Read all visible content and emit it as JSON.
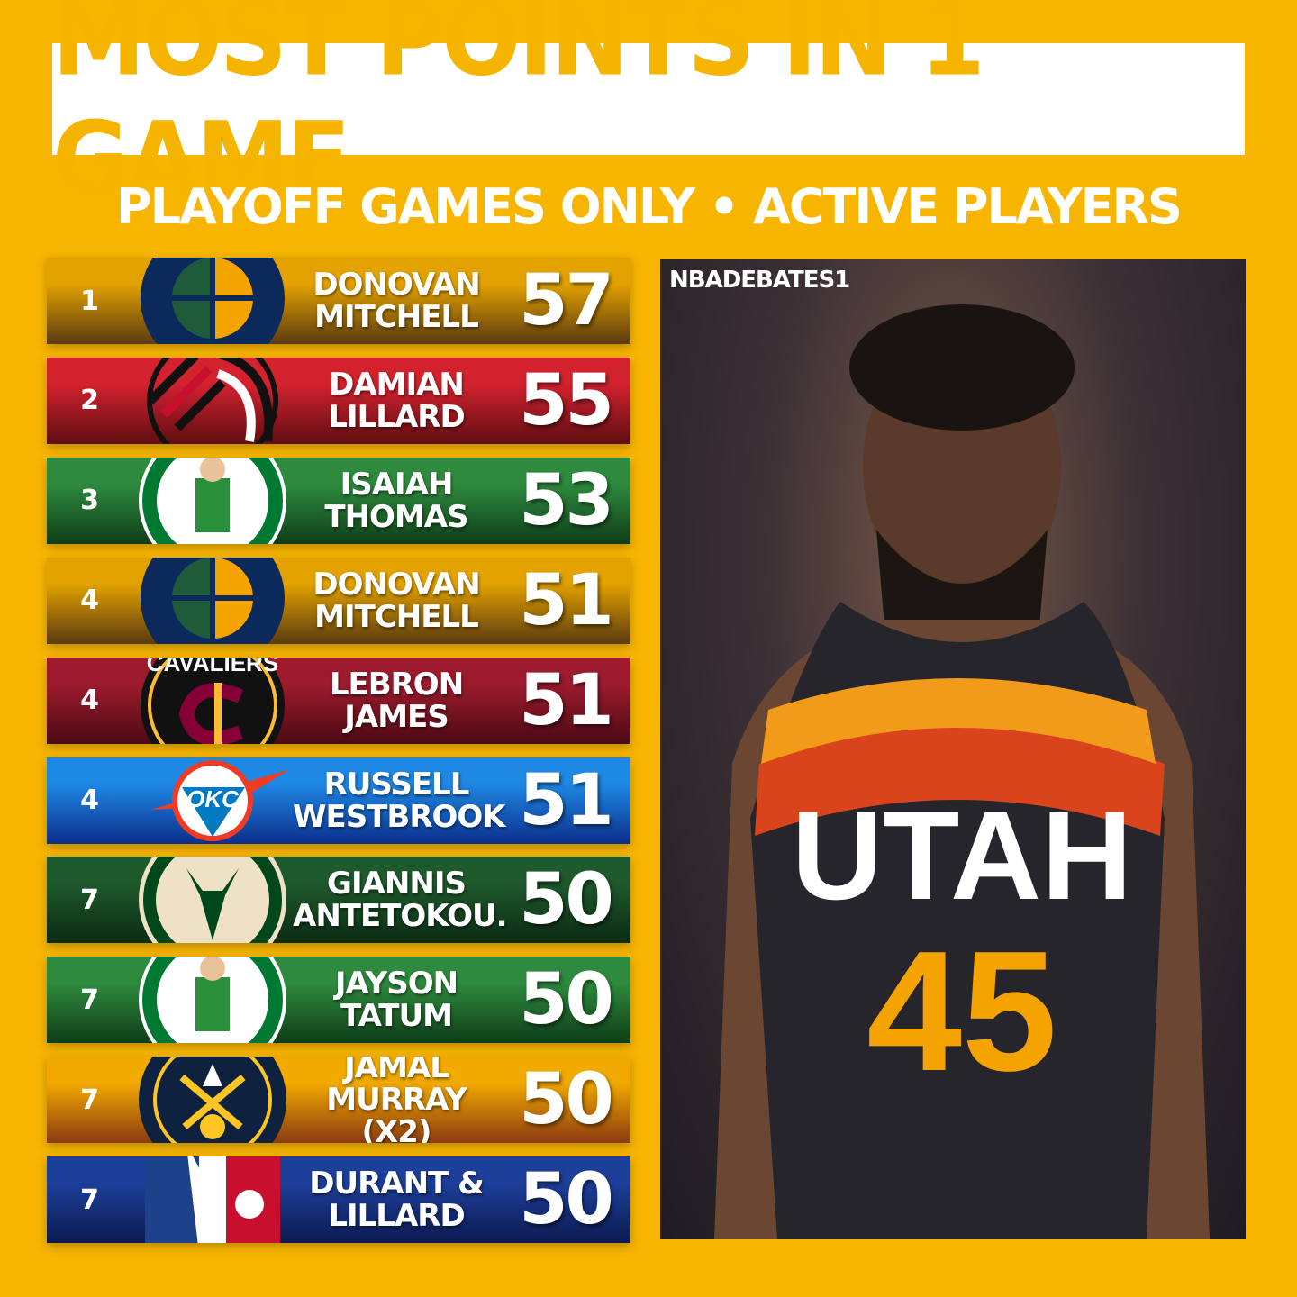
{
  "header": {
    "title": "MOST POINTS IN 1 GAME",
    "subtitle": "PLAYOFF GAMES ONLY • ACTIVE PLAYERS"
  },
  "rows": [
    {
      "rank": "1",
      "line1": "DONOVAN",
      "line2": "MITCHELL",
      "points": "57",
      "team": "jazz",
      "colors": [
        "#E3A200",
        "#5a3a10"
      ]
    },
    {
      "rank": "2",
      "line1": "DAMIAN",
      "line2": "LILLARD",
      "points": "55",
      "team": "blazers",
      "colors": [
        "#D3222E",
        "#5e0d12"
      ]
    },
    {
      "rank": "3",
      "line1": "ISAIAH",
      "line2": "THOMAS",
      "points": "53",
      "team": "celtics",
      "colors": [
        "#2E8B3E",
        "#0f3d18"
      ]
    },
    {
      "rank": "4",
      "line1": "DONOVAN",
      "line2": "MITCHELL",
      "points": "51",
      "team": "jazz",
      "colors": [
        "#E3A200",
        "#5a3a10"
      ]
    },
    {
      "rank": "4",
      "line1": "LEBRON",
      "line2": "JAMES",
      "points": "51",
      "team": "cavaliers",
      "colors": [
        "#9E1B2E",
        "#4a0a12"
      ]
    },
    {
      "rank": "4",
      "line1": "RUSSELL",
      "line2": "WESTBROOK",
      "points": "51",
      "team": "thunder",
      "colors": [
        "#1E88E5",
        "#0b2f8a"
      ]
    },
    {
      "rank": "7",
      "line1": "GIANNIS",
      "line2": "ANTETOKOU.",
      "points": "50",
      "team": "bucks",
      "colors": [
        "#1f5a2c",
        "#0b2a13"
      ]
    },
    {
      "rank": "7",
      "line1": "JAYSON",
      "line2": "TATUM",
      "points": "50",
      "team": "celtics",
      "colors": [
        "#2E8B3E",
        "#0f3d18"
      ]
    },
    {
      "rank": "7",
      "line1": "JAMAL",
      "line2": "MURRAY (X2)",
      "points": "50",
      "team": "nuggets",
      "colors": [
        "#F2A900",
        "#8a3a10"
      ]
    },
    {
      "rank": "7",
      "line1": "DURANT &",
      "line2": "LILLARD",
      "points": "50",
      "team": "nba",
      "colors": [
        "#1d3f9a",
        "#0c1a50"
      ]
    }
  ],
  "photo": {
    "watermark": "NBADEBATES1",
    "jersey_text": "UTAH",
    "jersey_number": "45"
  },
  "colors": {
    "background": "#F7B500",
    "title_text": "#F4B400"
  }
}
